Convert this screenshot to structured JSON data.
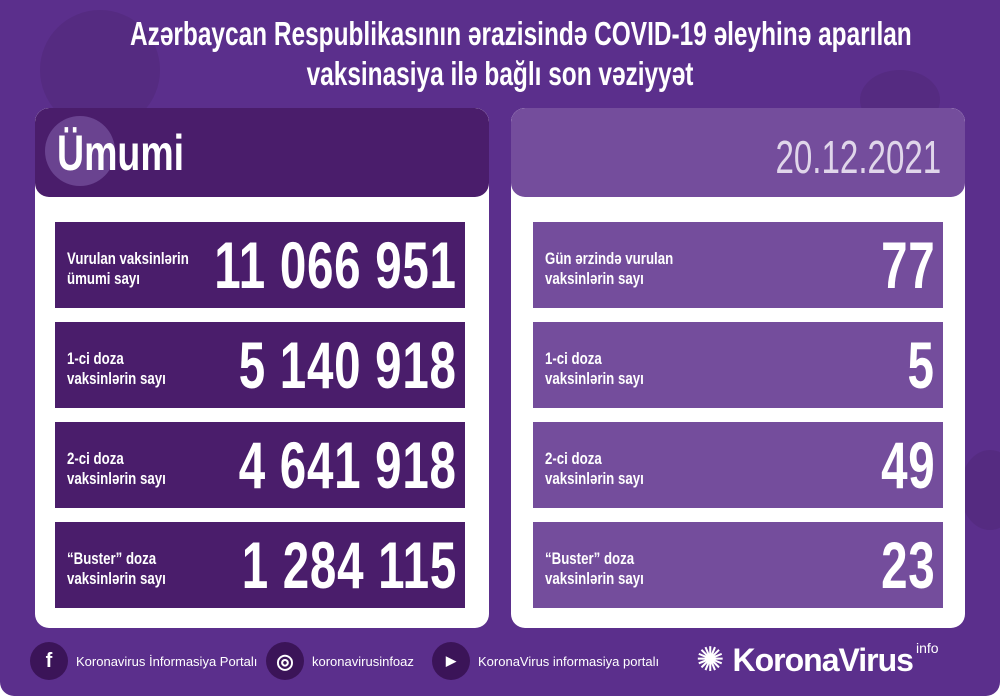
{
  "title": {
    "line1": "Azərbaycan Respublikasının ərazisində COVID-19 əleyhinə aparılan",
    "line2": "vaksinasiya ilə bağlı son vəziyyət"
  },
  "left": {
    "header": "Ümumi",
    "rows": [
      {
        "label1": "Vurulan vaksinlərin",
        "label2": "ümumi sayı",
        "value": "11 066 951"
      },
      {
        "label1": "1-ci doza",
        "label2": "vaksinlərin sayı",
        "value": "5 140 918"
      },
      {
        "label1": "2-ci doza",
        "label2": "vaksinlərin sayı",
        "value": "4 641 918"
      },
      {
        "label1": "“Buster” doza",
        "label2": "vaksinlərin sayı",
        "value": "1 284 115"
      }
    ]
  },
  "right": {
    "date": "20.12.2021",
    "rows": [
      {
        "label1": "Gün ərzində vurulan",
        "label2": "vaksinlərin sayı",
        "value": "77"
      },
      {
        "label1": "1-ci doza",
        "label2": "vaksinlərin sayı",
        "value": "5"
      },
      {
        "label1": "2-ci doza",
        "label2": "vaksinlərin sayı",
        "value": "49"
      },
      {
        "label1": "“Buster” doza",
        "label2": "vaksinlərin sayı",
        "value": "23"
      }
    ]
  },
  "footer": {
    "facebook": "Koronavirus İnformasiya Portalı",
    "instagram": "koronavirusinfoaz",
    "youtube": "KoronaVirus informasiya portalı",
    "brand": "KoronaVirus",
    "brand_sup": "info"
  },
  "colors": {
    "background": "#5b2f8c",
    "dark_box": "#4a1d6b",
    "light_box": "#744d9c"
  }
}
